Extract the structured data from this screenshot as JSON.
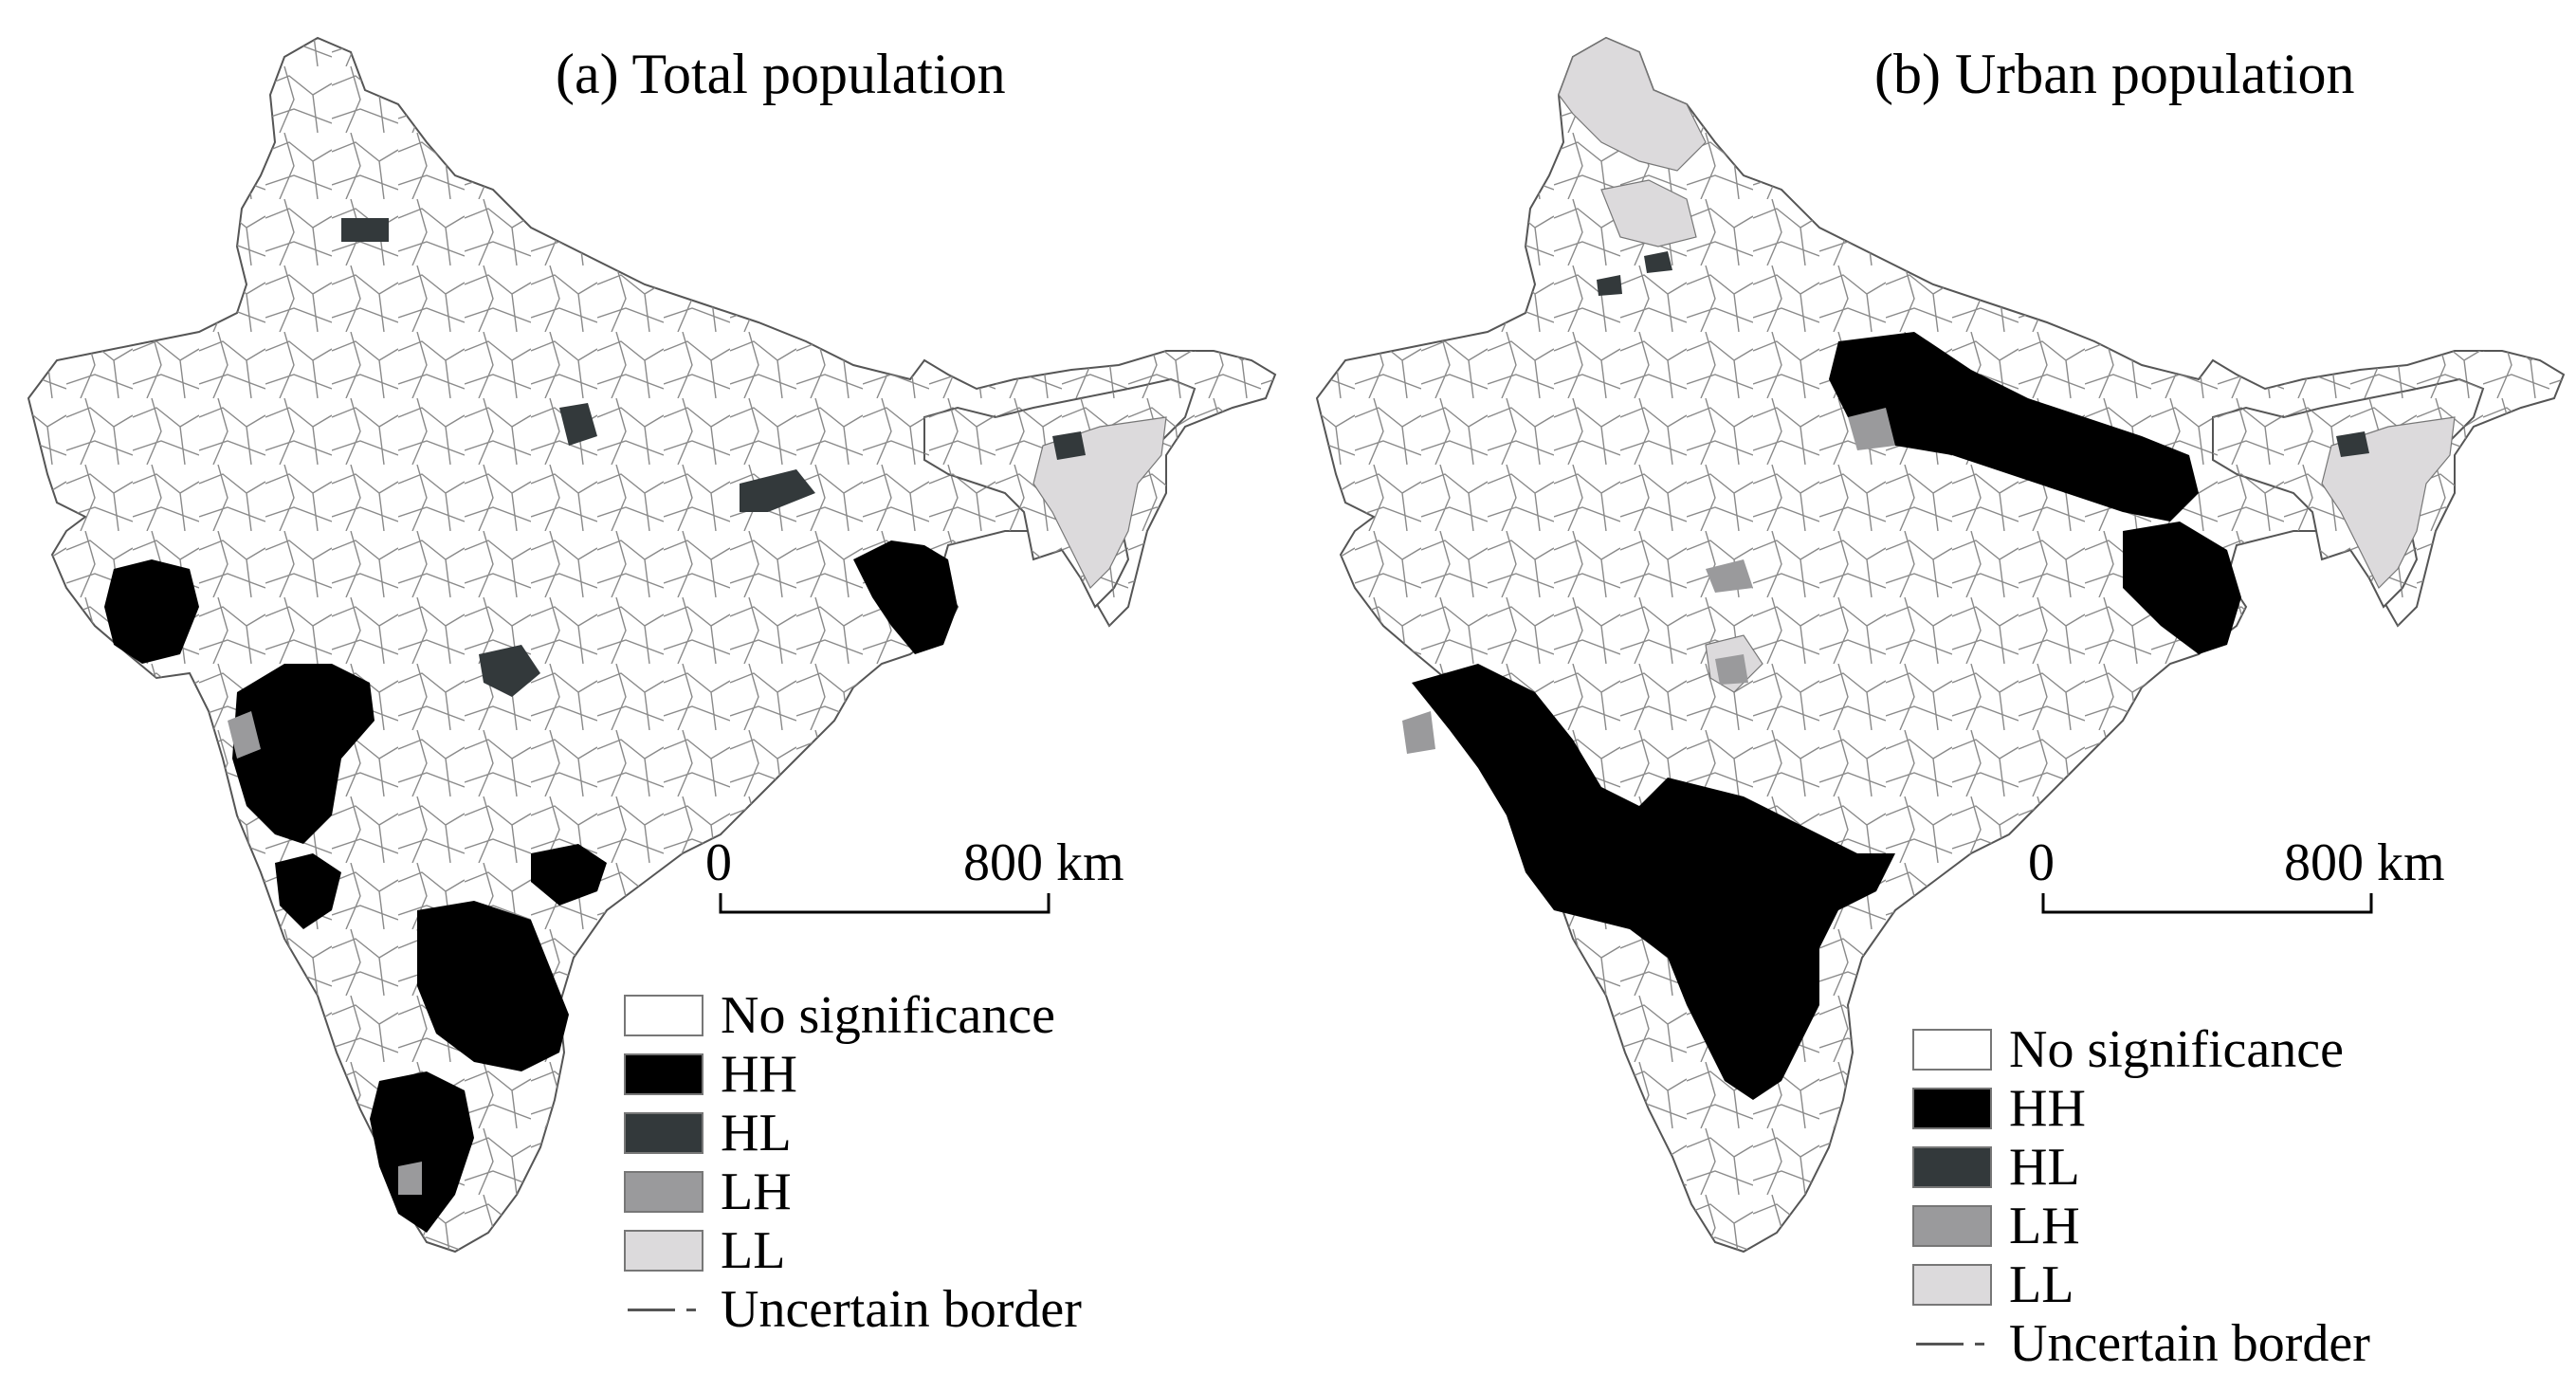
{
  "panels": [
    {
      "title": "(a) Total population",
      "scale": {
        "zero": "0",
        "end": "800 km"
      },
      "legend": [
        {
          "key": "no_significance",
          "label": "No significance",
          "color": "#ffffff"
        },
        {
          "key": "HH",
          "label": "HH",
          "color": "#000000"
        },
        {
          "key": "HL",
          "label": "HL",
          "color": "#33393b"
        },
        {
          "key": "LH",
          "label": "LH",
          "color": "#9a9a9c"
        },
        {
          "key": "LL",
          "label": "LL",
          "color": "#dcdadc"
        }
      ],
      "border_note": "Uncertain border"
    },
    {
      "title": "(b) Urban population",
      "scale": {
        "zero": "0",
        "end": "800 km"
      },
      "legend": [
        {
          "key": "no_significance",
          "label": "No significance",
          "color": "#ffffff"
        },
        {
          "key": "HH",
          "label": "HH",
          "color": "#000000"
        },
        {
          "key": "HL",
          "label": "HL",
          "color": "#33393b"
        },
        {
          "key": "LH",
          "label": "LH",
          "color": "#9a9a9c"
        },
        {
          "key": "LL",
          "label": "LL",
          "color": "#dcdadc"
        }
      ],
      "border_note": "Uncertain border"
    }
  ]
}
